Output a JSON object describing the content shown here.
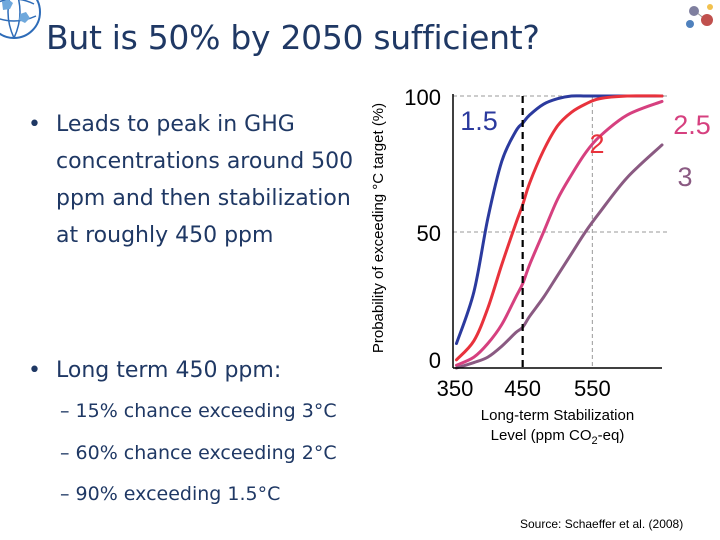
{
  "slide": {
    "title": "But is 50% by 2050 sufficient?",
    "bullets": [
      {
        "text": "Leads to peak in GHG concentrations around 500 ppm and then stabilization at roughly 450 ppm"
      },
      {
        "text": "Long term 450 ppm:"
      }
    ],
    "sub_bullets": [
      "– 15% chance exceeding 3°C",
      "– 60% chance exceeding 2°C",
      "– 90% exceeding 1.5°C"
    ],
    "bullet_glyph": "•",
    "source": "Source: Schaeffer et al. (2008)",
    "title_color": "#1f3864"
  },
  "chart_data": {
    "type": "line",
    "ylabel": "Probability of exceeding °C target (%)",
    "xlabel_line1": "Long-term Stabilization",
    "xlabel_line2_prefix": "Level (ppm CO",
    "xlabel_sub": "2",
    "xlabel_line2_suffix": "-eq)",
    "xlim": [
      350,
      650
    ],
    "ylim": [
      0,
      100
    ],
    "x_ticks": [
      "350",
      "450",
      "550"
    ],
    "y_ticks": [
      "0",
      "50",
      "100"
    ],
    "grid": "dashed at y=50, y=100, x=550",
    "highlight_x": 450,
    "series": [
      {
        "name": "1.5",
        "color": "#2b3a9e",
        "x": [
          355,
          380,
          400,
          420,
          440,
          450,
          460,
          480,
          500,
          520,
          540,
          560,
          600,
          650
        ],
        "y": [
          9,
          28,
          55,
          76,
          87,
          90,
          93,
          97,
          99,
          100,
          100,
          100,
          100,
          100
        ]
      },
      {
        "name": "2",
        "color": "#e8323c",
        "x": [
          355,
          380,
          400,
          420,
          440,
          450,
          460,
          480,
          500,
          520,
          540,
          560,
          600,
          650
        ],
        "y": [
          3,
          10,
          22,
          38,
          53,
          60,
          68,
          80,
          89,
          94,
          97,
          99,
          100,
          100
        ]
      },
      {
        "name": "2.5",
        "color": "#d6407f",
        "x": [
          355,
          380,
          400,
          420,
          440,
          450,
          460,
          480,
          500,
          520,
          540,
          560,
          600,
          650
        ],
        "y": [
          1,
          4,
          9,
          16,
          26,
          31,
          38,
          50,
          62,
          71,
          79,
          85,
          93,
          98
        ]
      },
      {
        "name": "3",
        "color": "#8a5a82",
        "x": [
          355,
          380,
          400,
          420,
          440,
          450,
          460,
          480,
          500,
          520,
          540,
          560,
          600,
          650
        ],
        "y": [
          0,
          2,
          4,
          8,
          13,
          15,
          19,
          26,
          34,
          42,
          50,
          57,
          70,
          82
        ]
      }
    ]
  }
}
